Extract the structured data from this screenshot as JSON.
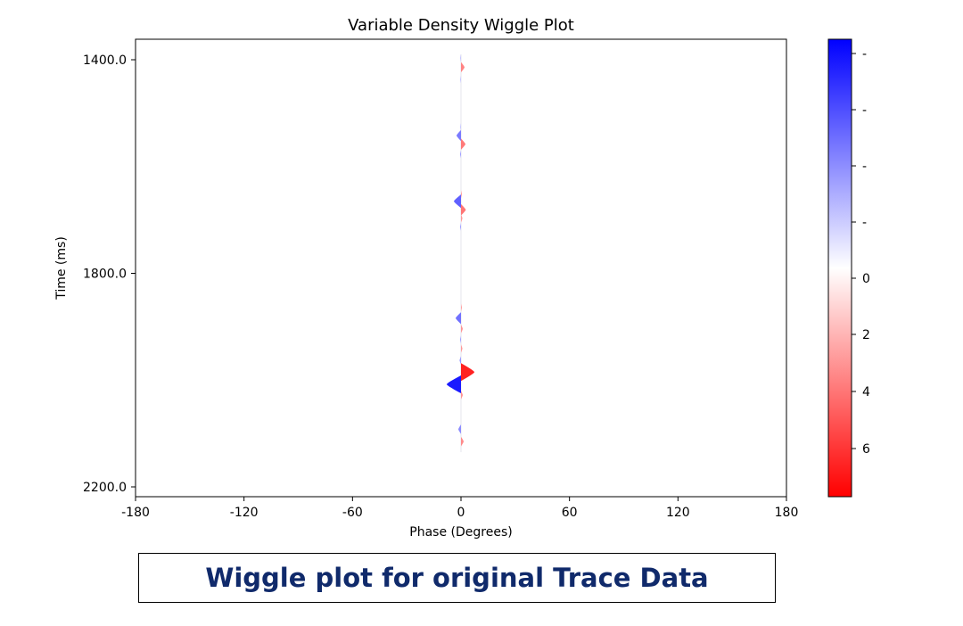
{
  "caption": "Wiggle plot for original Trace Data",
  "chart_data": {
    "type": "area",
    "title": "Variable Density Wiggle Plot",
    "xlabel": "Phase (Degrees)",
    "ylabel": "Time (ms)",
    "xlim": [
      -180,
      180
    ],
    "ylim": [
      2200,
      1400
    ],
    "x_ticks": [
      "-180",
      "-120",
      "-60",
      "0",
      "60",
      "120",
      "180"
    ],
    "y_ticks": [
      "1400.0",
      "1800.0",
      "2200.0"
    ],
    "grid": false,
    "colormap": {
      "name": "bwr",
      "low": "#ff0000",
      "mid": "#ffffff",
      "high": "#0000ff"
    },
    "colorbar_labels": [
      "-",
      "-",
      "-",
      "-",
      "0",
      "2",
      "4",
      "6"
    ],
    "trace_phase": 0,
    "wiggles": [
      {
        "time": 1397,
        "amp": -0.3
      },
      {
        "time": 1414,
        "amp": 2.0
      },
      {
        "time": 1437,
        "amp": -0.3
      },
      {
        "time": 1526,
        "amp": -0.3
      },
      {
        "time": 1542,
        "amp": -2.5
      },
      {
        "time": 1558,
        "amp": 2.5
      },
      {
        "time": 1577,
        "amp": -0.5
      },
      {
        "time": 1652,
        "amp": 0.5
      },
      {
        "time": 1665,
        "amp": -4.0
      },
      {
        "time": 1681,
        "amp": 2.7
      },
      {
        "time": 1697,
        "amp": 0.8
      },
      {
        "time": 1713,
        "amp": -0.5
      },
      {
        "time": 1864,
        "amp": 0.5
      },
      {
        "time": 1884,
        "amp": -3.0
      },
      {
        "time": 1904,
        "amp": 1.0
      },
      {
        "time": 1924,
        "amp": -0.5
      },
      {
        "time": 1941,
        "amp": 0.8
      },
      {
        "time": 1963,
        "amp": -0.8
      },
      {
        "time": 1985,
        "amp": 7.5
      },
      {
        "time": 2008,
        "amp": -8.0
      },
      {
        "time": 2028,
        "amp": 1.0
      },
      {
        "time": 2092,
        "amp": -1.5
      },
      {
        "time": 2115,
        "amp": 1.5
      }
    ]
  }
}
